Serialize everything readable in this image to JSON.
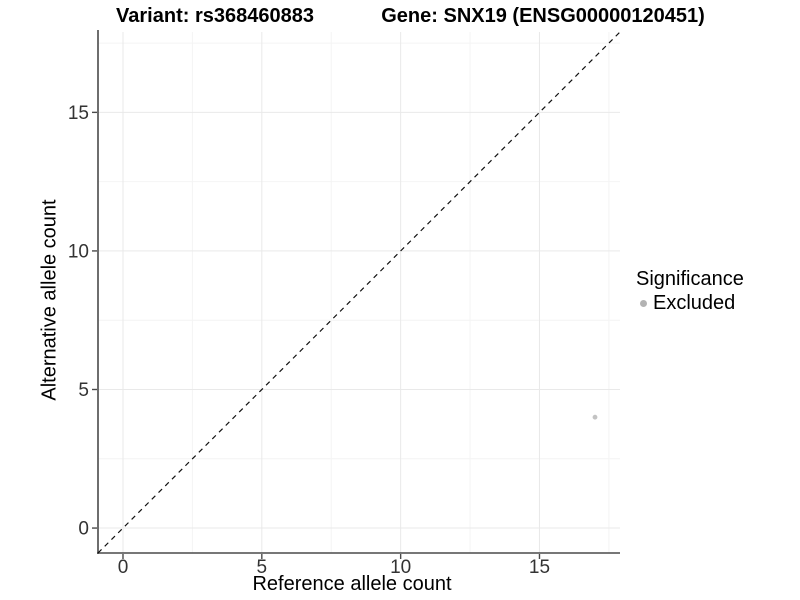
{
  "chart_data": {
    "type": "scatter",
    "title_left": "Variant: rs368460883",
    "title_right": "Gene: SNX19 (ENSG00000120451)",
    "xlabel": "Reference allele count",
    "ylabel": "Alternative allele count",
    "xlim": [
      -0.9,
      17.9
    ],
    "ylim": [
      -0.9,
      17.9
    ],
    "x_ticks": [
      0,
      5,
      10,
      15
    ],
    "y_ticks": [
      0,
      5,
      10,
      15
    ],
    "x_minor_ticks": [
      2.5,
      7.5,
      12.5,
      17.5
    ],
    "y_minor_ticks": [
      2.5,
      7.5,
      12.5,
      17.5
    ],
    "grid": {
      "major_color": "#e9e9e9",
      "minor_color": "#f4f4f4"
    },
    "axis_color": "#4a4a4a",
    "tick_label_color": "#333333",
    "identity_line": {
      "type": "y=x",
      "style": "dashed",
      "color": "#111111"
    },
    "points": [
      {
        "x": 17,
        "y": 4,
        "significance": "Excluded",
        "color": "#c3c3c3"
      }
    ],
    "legend": {
      "title": "Significance",
      "position": "right",
      "entries": [
        {
          "label": "Excluded",
          "color": "#b3b3b3"
        }
      ]
    }
  }
}
